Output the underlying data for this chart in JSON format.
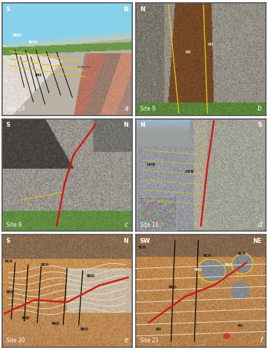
{
  "figure_layout": {
    "nrows": 3,
    "ncols": 2,
    "figsize": [
      3.83,
      5.0
    ],
    "dpi": 100
  },
  "panels": [
    {
      "id": "a",
      "label": "a",
      "site": "Site 24",
      "compass_left": "S",
      "compass_right": "N",
      "row": 0,
      "col": 0
    },
    {
      "id": "b",
      "label": "b",
      "site": "Site 9",
      "compass_left": "N",
      "compass_right": null,
      "row": 0,
      "col": 1
    },
    {
      "id": "c",
      "label": "c",
      "site": "Site 9",
      "compass_left": "S",
      "compass_right": "N",
      "row": 1,
      "col": 0
    },
    {
      "id": "d",
      "label": "d",
      "site": "Site 16",
      "compass_left": "N",
      "compass_right": "S",
      "row": 1,
      "col": 1
    },
    {
      "id": "e",
      "label": "e",
      "site": "Site 20",
      "compass_left": "S",
      "compass_right": "N",
      "row": 2,
      "col": 0
    },
    {
      "id": "f",
      "label": "f",
      "site": "Site 21",
      "compass_left": "SW",
      "compass_right": "NE",
      "row": 2,
      "col": 1
    }
  ],
  "border_color": "#555555",
  "border_width": 1.2,
  "label_fontsize": 7,
  "site_fontsize": 5.5,
  "compass_fontsize": 6,
  "text_color_dark": "#1a1a1a",
  "text_color_white": "#ffffff",
  "background_color": "#ffffff",
  "annotation_colors": {
    "white": "#ffffff",
    "dark": "#1a1a1a",
    "yellow": "#e8c020"
  }
}
